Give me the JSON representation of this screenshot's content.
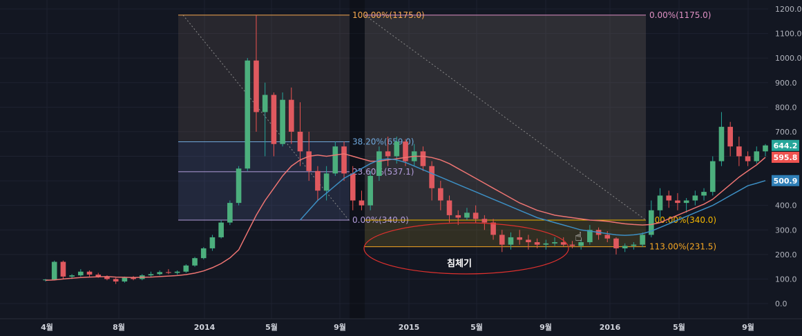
{
  "chart_data": {
    "type": "candlestick",
    "title": "",
    "xlabel": "",
    "ylabel": "",
    "ylim": [
      -50,
      1260
    ],
    "grid": true,
    "y_ticks": [
      "1200.0",
      "1100.0",
      "1000.0",
      "900.0",
      "800.0",
      "700.0",
      "600.0",
      "500.0",
      "400.0",
      "300.0",
      "200.0",
      "100.0",
      "0.0"
    ],
    "x_ticks": [
      "4월",
      "8월",
      "2014",
      "5월",
      "9월",
      "2015",
      "5월",
      "9월",
      "2016",
      "5월",
      "9월"
    ],
    "fib_left": [
      {
        "label": "100.00%(1175.0)",
        "value": 1175.0,
        "color": "#f7a94f"
      },
      {
        "label": "38.20%(659.0)",
        "value": 659.0,
        "color": "#6fa8dc"
      },
      {
        "label": "23.60%(537.1)",
        "value": 537.1,
        "color": "#b39ddb"
      },
      {
        "label": "0.00%(340.0)",
        "value": 340.0,
        "color": "#b39ddb"
      }
    ],
    "fib_right": [
      {
        "label": "0.00%(1175.0)",
        "value": 1175.0,
        "color": "#e091c4"
      },
      {
        "label": "100.00%(340.0)",
        "value": 340.0,
        "color": "#f5b800"
      },
      {
        "label": "113.00%(231.5)",
        "value": 231.5,
        "color": "#f5a623"
      }
    ],
    "annotation": "침체기",
    "price_badges": [
      {
        "label": "644.2",
        "value": 644.2,
        "color": "#26a69a"
      },
      {
        "label": "595.8",
        "value": 595.8,
        "color": "#ef5350"
      },
      {
        "label": "500.9",
        "value": 500.9,
        "color": "#2f7fb7"
      }
    ],
    "series": [
      {
        "name": "",
        "values_ohlc": [
          [
            95,
            100,
            90,
            98
          ],
          [
            98,
            175,
            95,
            170
          ],
          [
            170,
            175,
            100,
            110
          ],
          [
            110,
            120,
            100,
            115
          ],
          [
            115,
            140,
            110,
            130
          ],
          [
            130,
            135,
            110,
            118
          ],
          [
            118,
            125,
            105,
            110
          ],
          [
            110,
            115,
            95,
            100
          ],
          [
            100,
            105,
            80,
            90
          ],
          [
            90,
            110,
            85,
            105
          ],
          [
            105,
            112,
            95,
            100
          ],
          [
            100,
            120,
            95,
            115
          ],
          [
            115,
            130,
            108,
            120
          ],
          [
            120,
            135,
            115,
            128
          ],
          [
            128,
            140,
            120,
            125
          ],
          [
            125,
            135,
            118,
            130
          ],
          [
            130,
            160,
            125,
            155
          ],
          [
            155,
            190,
            150,
            185
          ],
          [
            185,
            230,
            180,
            225
          ],
          [
            225,
            280,
            215,
            270
          ],
          [
            270,
            340,
            265,
            330
          ],
          [
            330,
            420,
            320,
            410
          ],
          [
            410,
            560,
            400,
            550
          ],
          [
            550,
            1000,
            540,
            990
          ],
          [
            990,
            1175,
            700,
            780
          ],
          [
            780,
            900,
            600,
            850
          ],
          [
            850,
            860,
            600,
            650
          ],
          [
            650,
            860,
            640,
            830
          ],
          [
            830,
            880,
            650,
            700
          ],
          [
            700,
            820,
            560,
            620
          ],
          [
            620,
            700,
            500,
            540
          ],
          [
            540,
            560,
            420,
            460
          ],
          [
            460,
            560,
            420,
            530
          ],
          [
            530,
            660,
            520,
            640
          ],
          [
            640,
            660,
            500,
            530
          ],
          [
            530,
            560,
            380,
            420
          ],
          [
            420,
            460,
            380,
            400
          ],
          [
            400,
            540,
            380,
            520
          ],
          [
            520,
            640,
            500,
            620
          ],
          [
            620,
            680,
            560,
            600
          ],
          [
            600,
            680,
            570,
            660
          ],
          [
            660,
            670,
            560,
            580
          ],
          [
            580,
            650,
            560,
            620
          ],
          [
            620,
            640,
            540,
            560
          ],
          [
            560,
            580,
            420,
            470
          ],
          [
            470,
            500,
            380,
            420
          ],
          [
            420,
            440,
            330,
            360
          ],
          [
            360,
            380,
            320,
            350
          ],
          [
            350,
            390,
            340,
            370
          ],
          [
            370,
            400,
            330,
            345
          ],
          [
            345,
            360,
            300,
            330
          ],
          [
            330,
            345,
            260,
            280
          ],
          [
            280,
            300,
            210,
            240
          ],
          [
            240,
            290,
            220,
            270
          ],
          [
            270,
            300,
            240,
            260
          ],
          [
            260,
            280,
            220,
            250
          ],
          [
            250,
            265,
            225,
            240
          ],
          [
            240,
            260,
            220,
            245
          ],
          [
            245,
            270,
            235,
            250
          ],
          [
            250,
            270,
            230,
            240
          ],
          [
            240,
            255,
            225,
            235
          ],
          [
            235,
            260,
            220,
            250
          ],
          [
            250,
            320,
            240,
            300
          ],
          [
            300,
            310,
            260,
            280
          ],
          [
            280,
            295,
            250,
            265
          ],
          [
            265,
            270,
            200,
            225
          ],
          [
            225,
            245,
            210,
            235
          ],
          [
            235,
            250,
            220,
            240
          ],
          [
            240,
            290,
            230,
            280
          ],
          [
            280,
            420,
            270,
            380
          ],
          [
            380,
            470,
            350,
            440
          ],
          [
            440,
            460,
            390,
            420
          ],
          [
            420,
            450,
            380,
            410
          ],
          [
            410,
            430,
            370,
            420
          ],
          [
            420,
            460,
            400,
            440
          ],
          [
            440,
            470,
            420,
            455
          ],
          [
            455,
            600,
            440,
            580
          ],
          [
            580,
            780,
            560,
            720
          ],
          [
            720,
            740,
            600,
            640
          ],
          [
            640,
            680,
            560,
            600
          ],
          [
            600,
            620,
            560,
            580
          ],
          [
            580,
            640,
            570,
            620
          ],
          [
            620,
            650,
            600,
            644.2
          ]
        ]
      },
      {
        "name": "",
        "values": [
          95,
          96,
          100,
          103,
          106,
          108,
          109,
          110,
          108,
          107,
          106,
          107,
          108,
          110,
          112,
          114,
          118,
          124,
          133,
          146,
          163,
          186,
          219,
          290,
          360,
          420,
          470,
          520,
          560,
          585,
          600,
          605,
          600,
          605,
          610,
          600,
          590,
          580,
          580,
          585,
          590,
          595,
          600,
          600,
          595,
          585,
          570,
          550,
          530,
          510,
          490,
          470,
          450,
          430,
          410,
          395,
          380,
          370,
          360,
          355,
          350,
          345,
          340,
          338,
          335,
          330,
          325,
          322,
          320,
          322,
          330,
          345,
          360,
          375,
          390,
          405,
          425,
          455,
          485,
          515,
          540,
          565,
          595.8
        ]
      },
      {
        "name": "",
        "values": [
          null,
          null,
          null,
          null,
          null,
          null,
          null,
          null,
          null,
          null,
          null,
          null,
          null,
          null,
          null,
          null,
          null,
          null,
          null,
          null,
          null,
          null,
          null,
          null,
          null,
          null,
          null,
          null,
          null,
          340,
          380,
          420,
          450,
          480,
          510,
          530,
          550,
          570,
          585,
          590,
          585,
          575,
          560,
          545,
          530,
          515,
          500,
          485,
          470,
          455,
          440,
          425,
          410,
          395,
          380,
          365,
          350,
          340,
          330,
          320,
          310,
          300,
          295,
          290,
          285,
          280,
          278,
          280,
          285,
          295,
          310,
          325,
          340,
          355,
          370,
          385,
          400,
          420,
          440,
          460,
          480,
          490,
          500.9
        ]
      }
    ]
  }
}
